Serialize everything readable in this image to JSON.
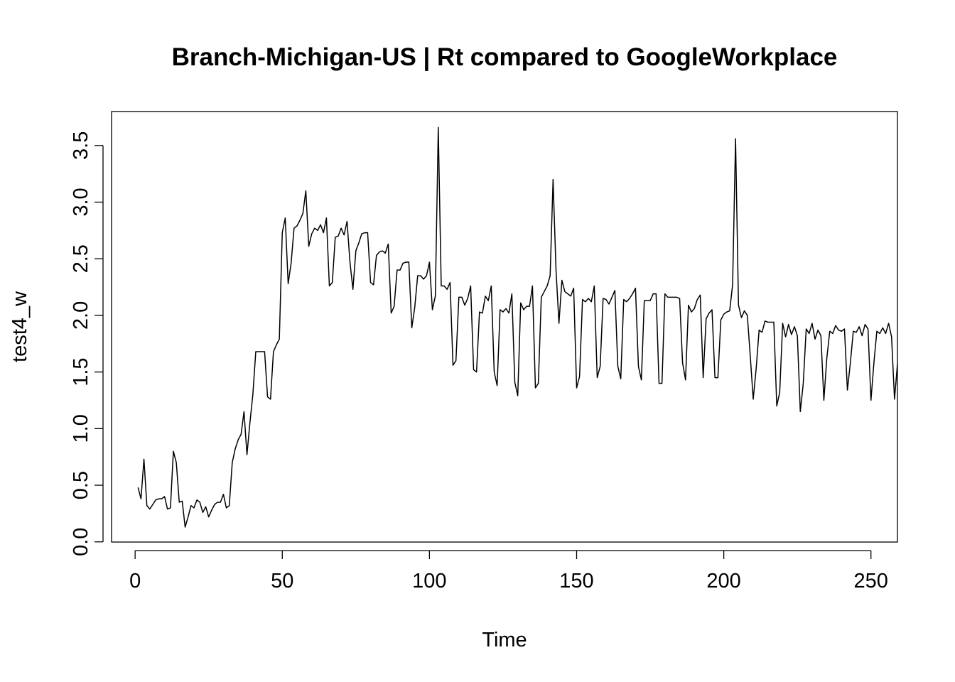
{
  "chart_data": {
    "type": "line",
    "title": "Branch-Michigan-US | Rt compared to GoogleWorkplace",
    "xlabel": "Time",
    "ylabel": "test4_w",
    "xlim": [
      -8,
      259
    ],
    "ylim": [
      -0.0016,
      3.8
    ],
    "x_ticks": [
      "0",
      "50",
      "100",
      "150",
      "200",
      "250"
    ],
    "y_ticks": [
      "0.0",
      "0.5",
      "1.0",
      "1.5",
      "2.0",
      "2.5",
      "3.0",
      "3.5"
    ],
    "line_color": "#000000",
    "grid": false,
    "x_start": 1,
    "series": [
      {
        "values": [
          0.48,
          0.38,
          0.73,
          0.32,
          0.29,
          0.33,
          0.37,
          0.38,
          0.38,
          0.4,
          0.29,
          0.3,
          0.8,
          0.7,
          0.35,
          0.36,
          0.13,
          0.22,
          0.32,
          0.3,
          0.37,
          0.35,
          0.26,
          0.31,
          0.22,
          0.28,
          0.33,
          0.35,
          0.35,
          0.42,
          0.3,
          0.32,
          0.7,
          0.82,
          0.9,
          0.95,
          1.15,
          0.77,
          1.05,
          1.3,
          1.68,
          1.68,
          1.68,
          1.68,
          1.28,
          1.26,
          1.68,
          1.74,
          1.79,
          2.73,
          2.86,
          2.28,
          2.46,
          2.77,
          2.79,
          2.84,
          2.9,
          3.1,
          2.61,
          2.72,
          2.77,
          2.75,
          2.8,
          2.73,
          2.86,
          2.26,
          2.29,
          2.69,
          2.7,
          2.77,
          2.71,
          2.83,
          2.47,
          2.23,
          2.57,
          2.64,
          2.72,
          2.73,
          2.73,
          2.29,
          2.27,
          2.53,
          2.56,
          2.57,
          2.55,
          2.63,
          2.02,
          2.08,
          2.4,
          2.4,
          2.46,
          2.47,
          2.47,
          1.89,
          2.07,
          2.35,
          2.35,
          2.32,
          2.35,
          2.47,
          2.05,
          2.17,
          3.66,
          2.26,
          2.26,
          2.23,
          2.29,
          1.56,
          1.6,
          2.16,
          2.16,
          2.09,
          2.15,
          2.26,
          1.52,
          1.5,
          2.03,
          2.02,
          2.17,
          2.13,
          2.26,
          1.5,
          1.38,
          2.05,
          2.03,
          2.06,
          2.02,
          2.19,
          1.41,
          1.29,
          2.11,
          2.05,
          2.08,
          2.08,
          2.26,
          1.36,
          1.4,
          2.16,
          2.21,
          2.26,
          2.35,
          3.2,
          2.4,
          1.93,
          2.31,
          2.21,
          2.19,
          2.17,
          2.24,
          1.36,
          1.46,
          2.14,
          2.12,
          2.15,
          2.12,
          2.26,
          1.45,
          1.55,
          2.15,
          2.14,
          2.1,
          2.16,
          2.22,
          1.55,
          1.44,
          2.14,
          2.12,
          2.15,
          2.19,
          2.24,
          1.55,
          1.43,
          2.13,
          2.13,
          2.13,
          2.19,
          2.19,
          1.4,
          1.4,
          2.19,
          2.16,
          2.16,
          2.16,
          2.16,
          2.15,
          1.58,
          1.43,
          2.09,
          2.03,
          2.06,
          2.14,
          2.18,
          1.45,
          1.97,
          2.02,
          2.05,
          1.45,
          1.45,
          1.96,
          2.01,
          2.03,
          2.04,
          2.27,
          3.56,
          2.09,
          1.98,
          2.04,
          2.0,
          1.64,
          1.26,
          1.53,
          1.87,
          1.85,
          1.95,
          1.94,
          1.94,
          1.94,
          1.2,
          1.32,
          1.93,
          1.81,
          1.92,
          1.83,
          1.9,
          1.82,
          1.15,
          1.4,
          1.88,
          1.84,
          1.93,
          1.79,
          1.87,
          1.82,
          1.25,
          1.62,
          1.86,
          1.84,
          1.91,
          1.87,
          1.86,
          1.88,
          1.34,
          1.58,
          1.86,
          1.85,
          1.9,
          1.82,
          1.92,
          1.88,
          1.25,
          1.58,
          1.86,
          1.84,
          1.89,
          1.84,
          1.93,
          1.81,
          1.26,
          1.57
        ]
      }
    ]
  }
}
